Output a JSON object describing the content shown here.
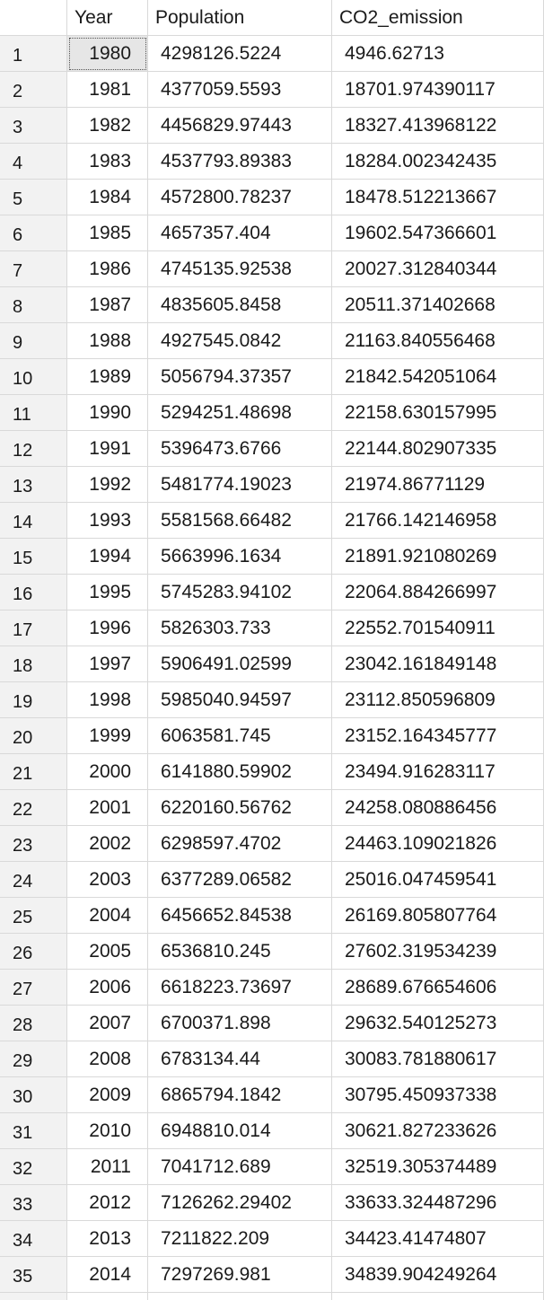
{
  "columns": [
    "",
    "Year",
    "Population",
    "CO2_emission"
  ],
  "rows": [
    {
      "n": "1",
      "year": "1980",
      "pop": "4298126.5224",
      "co2": "4946.62713"
    },
    {
      "n": "2",
      "year": "1981",
      "pop": "4377059.5593",
      "co2": "18701.974390117"
    },
    {
      "n": "3",
      "year": "1982",
      "pop": "4456829.97443",
      "co2": "18327.413968122"
    },
    {
      "n": "4",
      "year": "1983",
      "pop": "4537793.89383",
      "co2": "18284.002342435"
    },
    {
      "n": "5",
      "year": "1984",
      "pop": "4572800.78237",
      "co2": "18478.512213667"
    },
    {
      "n": "6",
      "year": "1985",
      "pop": "4657357.404",
      "co2": "19602.547366601"
    },
    {
      "n": "7",
      "year": "1986",
      "pop": "4745135.92538",
      "co2": "20027.312840344"
    },
    {
      "n": "8",
      "year": "1987",
      "pop": "4835605.8458",
      "co2": "20511.371402668"
    },
    {
      "n": "9",
      "year": "1988",
      "pop": "4927545.0842",
      "co2": "21163.840556468"
    },
    {
      "n": "10",
      "year": "1989",
      "pop": "5056794.37357",
      "co2": "21842.542051064"
    },
    {
      "n": "11",
      "year": "1990",
      "pop": "5294251.48698",
      "co2": "22158.630157995"
    },
    {
      "n": "12",
      "year": "1991",
      "pop": "5396473.6766",
      "co2": "22144.802907335"
    },
    {
      "n": "13",
      "year": "1992",
      "pop": "5481774.19023",
      "co2": "21974.86771129"
    },
    {
      "n": "14",
      "year": "1993",
      "pop": "5581568.66482",
      "co2": "21766.142146958"
    },
    {
      "n": "15",
      "year": "1994",
      "pop": "5663996.1634",
      "co2": "21891.921080269"
    },
    {
      "n": "16",
      "year": "1995",
      "pop": "5745283.94102",
      "co2": "22064.884266997"
    },
    {
      "n": "17",
      "year": "1996",
      "pop": "5826303.733",
      "co2": "22552.701540911"
    },
    {
      "n": "18",
      "year": "1997",
      "pop": "5906491.02599",
      "co2": "23042.161849148"
    },
    {
      "n": "19",
      "year": "1998",
      "pop": "5985040.94597",
      "co2": "23112.850596809"
    },
    {
      "n": "20",
      "year": "1999",
      "pop": "6063581.745",
      "co2": "23152.164345777"
    },
    {
      "n": "21",
      "year": "2000",
      "pop": "6141880.59902",
      "co2": "23494.916283117"
    },
    {
      "n": "22",
      "year": "2001",
      "pop": "6220160.56762",
      "co2": "24258.080886456"
    },
    {
      "n": "23",
      "year": "2002",
      "pop": "6298597.4702",
      "co2": "24463.109021826"
    },
    {
      "n": "24",
      "year": "2003",
      "pop": "6377289.06582",
      "co2": "25016.047459541"
    },
    {
      "n": "25",
      "year": "2004",
      "pop": "6456652.84538",
      "co2": "26169.805807764"
    },
    {
      "n": "26",
      "year": "2005",
      "pop": "6536810.245",
      "co2": "27602.319534239"
    },
    {
      "n": "27",
      "year": "2006",
      "pop": "6618223.73697",
      "co2": "28689.676654606"
    },
    {
      "n": "28",
      "year": "2007",
      "pop": "6700371.898",
      "co2": "29632.540125273"
    },
    {
      "n": "29",
      "year": "2008",
      "pop": "6783134.44",
      "co2": "30083.781880617"
    },
    {
      "n": "30",
      "year": "2009",
      "pop": "6865794.1842",
      "co2": "30795.450937338"
    },
    {
      "n": "31",
      "year": "2010",
      "pop": "6948810.014",
      "co2": "30621.827233626"
    },
    {
      "n": "32",
      "year": "2011",
      "pop": "7041712.689",
      "co2": "32519.305374489"
    },
    {
      "n": "33",
      "year": "2012",
      "pop": "7126262.29402",
      "co2": "33633.324487296"
    },
    {
      "n": "34",
      "year": "2013",
      "pop": "7211822.209",
      "co2": "34423.41474807"
    },
    {
      "n": "35",
      "year": "2014",
      "pop": "7297269.981",
      "co2": "34839.904249264"
    }
  ]
}
